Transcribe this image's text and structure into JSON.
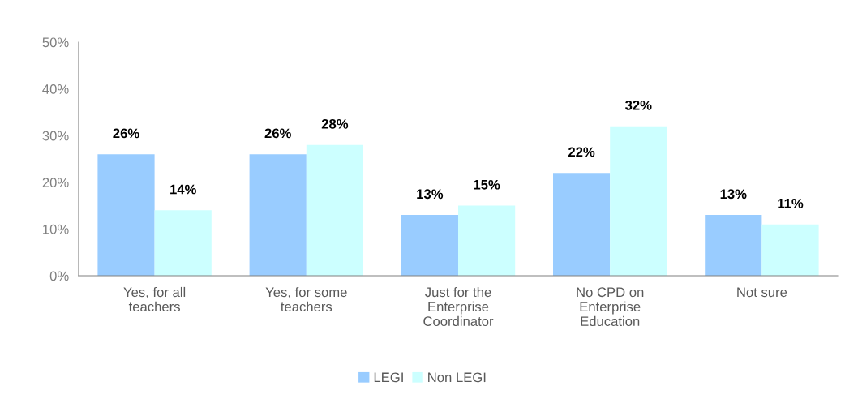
{
  "chart_data": {
    "type": "bar",
    "categories": [
      "Yes, for all\nteachers",
      "Yes, for some\nteachers",
      "Just for the\nEnterprise\nCoordinator",
      "No CPD on\nEnterprise\nEducation",
      "Not sure"
    ],
    "series": [
      {
        "name": "LEGI",
        "color": "#99ccff",
        "values": [
          26,
          26,
          13,
          22,
          13
        ],
        "value_labels": [
          "26%",
          "26%",
          "13%",
          "22%",
          "13%"
        ]
      },
      {
        "name": "Non LEGI",
        "color": "#ccffff",
        "values": [
          14,
          28,
          15,
          32,
          11
        ],
        "value_labels": [
          "14%",
          "28%",
          "15%",
          "32%",
          "11%"
        ]
      }
    ],
    "ylim": [
      0,
      50
    ],
    "yticks": [
      {
        "value": 0,
        "label": "0%"
      },
      {
        "value": 10,
        "label": "10%"
      },
      {
        "value": 20,
        "label": "20%"
      },
      {
        "value": 30,
        "label": "30%"
      },
      {
        "value": 40,
        "label": "40%"
      },
      {
        "value": 50,
        "label": "50%"
      }
    ],
    "grid": false,
    "legend": "bottom"
  }
}
